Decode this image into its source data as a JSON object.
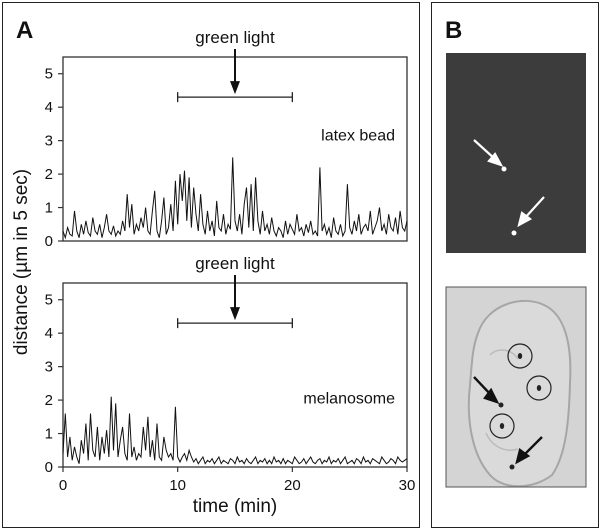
{
  "figure": {
    "panel_a_letter": "A",
    "panel_b_letter": "B"
  },
  "chart_data": [
    {
      "type": "line",
      "title": "",
      "annotation_text": "green light",
      "series": [
        {
          "name": "latex bead",
          "x": [
            0,
            0.2,
            0.4,
            0.6,
            0.8,
            1.0,
            1.2,
            1.4,
            1.6,
            1.8,
            2.0,
            2.2,
            2.4,
            2.6,
            2.8,
            3.0,
            3.2,
            3.4,
            3.6,
            3.8,
            4.0,
            4.2,
            4.4,
            4.6,
            4.8,
            5.0,
            5.2,
            5.4,
            5.6,
            5.8,
            6.0,
            6.2,
            6.4,
            6.6,
            6.8,
            7.0,
            7.2,
            7.4,
            7.6,
            7.8,
            8.0,
            8.2,
            8.4,
            8.6,
            8.8,
            9.0,
            9.2,
            9.4,
            9.6,
            9.8,
            10.0,
            10.2,
            10.4,
            10.6,
            10.8,
            11.0,
            11.2,
            11.4,
            11.6,
            11.8,
            12.0,
            12.2,
            12.4,
            12.6,
            12.8,
            13.0,
            13.2,
            13.4,
            13.6,
            13.8,
            14.0,
            14.2,
            14.4,
            14.6,
            14.8,
            15.0,
            15.2,
            15.4,
            15.6,
            15.8,
            16.0,
            16.2,
            16.4,
            16.6,
            16.8,
            17.0,
            17.2,
            17.4,
            17.6,
            17.8,
            18.0,
            18.2,
            18.4,
            18.6,
            18.8,
            19.0,
            19.2,
            19.4,
            19.6,
            19.8,
            20.0,
            20.2,
            20.4,
            20.6,
            20.8,
            21.0,
            21.2,
            21.4,
            21.6,
            21.8,
            22.0,
            22.2,
            22.4,
            22.6,
            22.8,
            23.0,
            23.2,
            23.4,
            23.6,
            23.8,
            24.0,
            24.2,
            24.4,
            24.6,
            24.8,
            25.0,
            25.2,
            25.4,
            25.6,
            25.8,
            26.0,
            26.2,
            26.4,
            26.6,
            26.8,
            27.0,
            27.2,
            27.4,
            27.6,
            27.8,
            28.0,
            28.2,
            28.4,
            28.6,
            28.8,
            29.0,
            29.2,
            29.4,
            29.6,
            29.8,
            30.0
          ],
          "y": [
            0.3,
            0.1,
            0.4,
            0.2,
            0.15,
            0.9,
            0.3,
            0.1,
            0.5,
            0.2,
            0.6,
            0.25,
            0.15,
            0.7,
            0.3,
            0.2,
            0.5,
            0.1,
            0.4,
            0.8,
            0.3,
            0.2,
            0.45,
            0.15,
            0.3,
            0.2,
            0.6,
            0.3,
            1.4,
            0.4,
            1.1,
            0.2,
            0.5,
            0.3,
            0.7,
            0.4,
            1.0,
            0.3,
            0.2,
            0.9,
            1.5,
            0.3,
            0.1,
            0.6,
            1.3,
            0.2,
            0.4,
            1.1,
            0.3,
            1.8,
            0.5,
            2.0,
            1.2,
            2.1,
            0.6,
            1.9,
            0.4,
            1.6,
            0.8,
            0.3,
            1.4,
            0.5,
            0.2,
            0.9,
            0.3,
            0.6,
            0.15,
            1.2,
            0.4,
            0.3,
            0.8,
            0.2,
            0.5,
            0.35,
            2.5,
            0.6,
            0.3,
            0.8,
            0.2,
            1.1,
            1.6,
            0.4,
            1.7,
            0.3,
            1.9,
            0.6,
            0.2,
            0.9,
            0.3,
            0.5,
            0.2,
            0.7,
            0.3,
            0.15,
            0.4,
            0.3,
            0.1,
            0.6,
            0.2,
            0.5,
            0.35,
            0.2,
            0.8,
            0.3,
            0.4,
            0.15,
            0.5,
            0.25,
            0.6,
            0.2,
            0.3,
            0.15,
            2.2,
            0.3,
            0.5,
            0.2,
            0.4,
            0.1,
            0.7,
            0.3,
            0.2,
            0.5,
            0.15,
            0.3,
            1.7,
            0.4,
            0.2,
            0.6,
            0.3,
            0.8,
            0.2,
            0.4,
            0.5,
            0.3,
            0.9,
            0.2,
            0.4,
            0.6,
            1.0,
            0.3,
            0.5,
            0.2,
            0.8,
            0.4,
            0.3,
            0.7,
            0.2,
            0.9,
            0.4,
            0.3,
            0.6
          ]
        }
      ],
      "bracket_x": [
        10,
        20
      ],
      "arrow_x": 15,
      "xlim": [
        0,
        30
      ],
      "ylim": [
        0,
        5.5
      ],
      "y_ticks": [
        0,
        1,
        2,
        3,
        4,
        5
      ]
    },
    {
      "type": "line",
      "title": "",
      "annotation_text": "green light",
      "series": [
        {
          "name": "melanosome",
          "x": [
            0,
            0.2,
            0.4,
            0.6,
            0.8,
            1.0,
            1.2,
            1.4,
            1.6,
            1.8,
            2.0,
            2.2,
            2.4,
            2.6,
            2.8,
            3.0,
            3.2,
            3.4,
            3.6,
            3.8,
            4.0,
            4.2,
            4.4,
            4.6,
            4.8,
            5.0,
            5.2,
            5.4,
            5.6,
            5.8,
            6.0,
            6.2,
            6.4,
            6.6,
            6.8,
            7.0,
            7.2,
            7.4,
            7.6,
            7.8,
            8.0,
            8.2,
            8.4,
            8.6,
            8.8,
            9.0,
            9.2,
            9.4,
            9.6,
            9.8,
            10.0,
            10.2,
            10.4,
            10.6,
            10.8,
            11.0,
            11.2,
            11.4,
            11.6,
            11.8,
            12.0,
            12.2,
            12.4,
            12.6,
            12.8,
            13.0,
            13.2,
            13.4,
            13.6,
            13.8,
            14.0,
            14.2,
            14.4,
            14.6,
            14.8,
            15.0,
            15.2,
            15.4,
            15.6,
            15.8,
            16.0,
            16.2,
            16.4,
            16.6,
            16.8,
            17.0,
            17.2,
            17.4,
            17.6,
            17.8,
            18.0,
            18.2,
            18.4,
            18.6,
            18.8,
            19.0,
            19.2,
            19.4,
            19.6,
            19.8,
            20.0,
            20.2,
            20.4,
            20.6,
            20.8,
            21.0,
            21.2,
            21.4,
            21.6,
            21.8,
            22.0,
            22.2,
            22.4,
            22.6,
            22.8,
            23.0,
            23.2,
            23.4,
            23.6,
            23.8,
            24.0,
            24.2,
            24.4,
            24.6,
            24.8,
            25.0,
            25.2,
            25.4,
            25.6,
            25.8,
            26.0,
            26.2,
            26.4,
            26.6,
            26.8,
            27.0,
            27.2,
            27.4,
            27.6,
            27.8,
            28.0,
            28.2,
            28.4,
            28.6,
            28.8,
            29.0,
            29.2,
            29.4,
            29.6,
            29.8,
            30.0
          ],
          "y": [
            0.4,
            1.6,
            0.3,
            0.9,
            0.2,
            0.6,
            0.3,
            0.1,
            0.8,
            0.4,
            1.3,
            0.2,
            1.6,
            0.5,
            0.3,
            1.2,
            0.2,
            0.9,
            0.4,
            1.1,
            0.3,
            2.1,
            0.5,
            1.9,
            0.3,
            0.8,
            1.2,
            0.4,
            0.2,
            1.6,
            0.3,
            0.6,
            0.2,
            0.4,
            0.3,
            1.2,
            0.5,
            1.5,
            0.3,
            0.8,
            0.2,
            1.3,
            0.3,
            0.2,
            0.9,
            0.5,
            0.3,
            0.4,
            0.2,
            1.8,
            0.3,
            0.15,
            0.3,
            0.4,
            0.2,
            0.5,
            0.3,
            0.15,
            0.25,
            0.1,
            0.2,
            0.3,
            0.1,
            0.2,
            0.15,
            0.25,
            0.1,
            0.2,
            0.3,
            0.1,
            0.2,
            0.15,
            0.1,
            0.25,
            0.2,
            0.1,
            0.3,
            0.15,
            0.2,
            0.1,
            0.25,
            0.15,
            0.1,
            0.2,
            0.3,
            0.1,
            0.2,
            0.15,
            0.25,
            0.1,
            0.2,
            0.1,
            0.3,
            0.15,
            0.2,
            0.1,
            0.25,
            0.1,
            0.2,
            0.15,
            0.1,
            0.3,
            0.2,
            0.1,
            0.15,
            0.25,
            0.1,
            0.2,
            0.3,
            0.15,
            0.1,
            0.2,
            0.25,
            0.1,
            0.2,
            0.15,
            0.3,
            0.1,
            0.2,
            0.15,
            0.25,
            0.1,
            0.2,
            0.3,
            0.1,
            0.15,
            0.2,
            0.1,
            0.25,
            0.2,
            0.1,
            0.3,
            0.15,
            0.2,
            0.1,
            0.25,
            0.2,
            0.15,
            0.1,
            0.3,
            0.2,
            0.1,
            0.15,
            0.25,
            0.2,
            0.1,
            0.3,
            0.2,
            0.15,
            0.2,
            0.25
          ]
        }
      ],
      "bracket_x": [
        10,
        20
      ],
      "arrow_x": 15,
      "xlim": [
        0,
        30
      ],
      "ylim": [
        0,
        5.5
      ],
      "y_ticks": [
        0,
        1,
        2,
        3,
        4,
        5
      ],
      "x_ticks": [
        0,
        10,
        20,
        30
      ],
      "xlabel": "time (min)"
    }
  ],
  "shared_axes": {
    "ylabel": "distance (µm in 5 sec)"
  },
  "panel_b": {
    "top_image": "fluorescence image, two bright particles marked by white arrows",
    "bottom_image": "brightfield cell image, particles marked by black arrows and melanosomes circled"
  }
}
